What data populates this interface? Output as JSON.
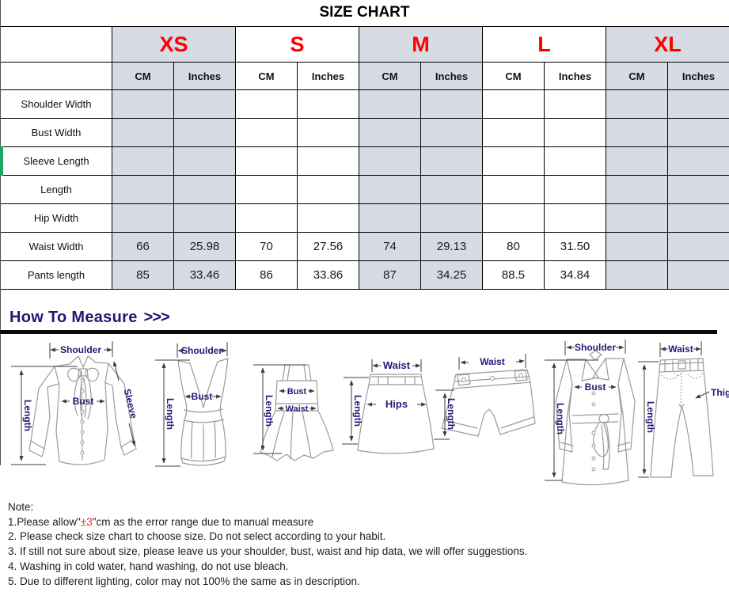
{
  "title": "SIZE CHART",
  "table": {
    "sizes": [
      {
        "label": "XS",
        "shaded": true
      },
      {
        "label": "S",
        "shaded": false
      },
      {
        "label": "M",
        "shaded": true
      },
      {
        "label": "L",
        "shaded": false
      },
      {
        "label": "XL",
        "shaded": true
      }
    ],
    "unit_headers": [
      "CM",
      "Inches"
    ],
    "rows": [
      {
        "label": "Shoulder Width",
        "values": [
          "",
          "",
          "",
          "",
          "",
          "",
          "",
          "",
          "",
          ""
        ]
      },
      {
        "label": "Bust Width",
        "values": [
          "",
          "",
          "",
          "",
          "",
          "",
          "",
          "",
          "",
          ""
        ]
      },
      {
        "label": "Sleeve Length",
        "values": [
          "",
          "",
          "",
          "",
          "",
          "",
          "",
          "",
          "",
          ""
        ],
        "selected": true
      },
      {
        "label": "Length",
        "values": [
          "",
          "",
          "",
          "",
          "",
          "",
          "",
          "",
          "",
          ""
        ]
      },
      {
        "label": "Hip Width",
        "values": [
          "",
          "",
          "",
          "",
          "",
          "",
          "",
          "",
          "",
          ""
        ]
      },
      {
        "label": "Waist Width",
        "values": [
          "66",
          "25.98",
          "70",
          "27.56",
          "74",
          "29.13",
          "80",
          "31.50",
          "",
          ""
        ]
      },
      {
        "label": "Pants length",
        "values": [
          "85",
          "33.46",
          "86",
          "33.86",
          "87",
          "34.25",
          "88.5",
          "34.84",
          "",
          ""
        ]
      }
    ]
  },
  "how_to_measure": {
    "label": "How To Measure",
    "arrows": ">>>"
  },
  "diagrams": {
    "blouse": {
      "shoulder": "Shoulder",
      "bust": "Bust",
      "length": "Length",
      "sleeve": "Sleeve"
    },
    "tank": {
      "shoulder": "Shoulder",
      "bust": "Bust",
      "length": "Length"
    },
    "dress": {
      "bust": "Bust",
      "waist": "Waist",
      "length": "Length"
    },
    "skirt": {
      "waist": "Waist",
      "hips": "Hips",
      "length": "Length"
    },
    "shorts": {
      "waist": "Waist",
      "length": "Length"
    },
    "coat": {
      "shoulder": "Shoulder",
      "bust": "Bust",
      "length": "Length"
    },
    "jeans": {
      "waist": "Waist",
      "thigh": "Thigh",
      "length": "Length"
    }
  },
  "notes": {
    "heading": "Note:",
    "line1": {
      "prefix": "1.Please allow\"",
      "highlight": "±3",
      "suffix": "\"cm as the error range due to manual measure"
    },
    "items": [
      "2. Please check size chart to choose size. Do not select according to your habit.",
      "3. If still not sure about size, please leave us your shoulder, bust, waist and hip data, we will offer suggestions.",
      "4. Washing in cold water, hand washing, do not use bleach.",
      "5. Due to different lighting, color may not 100% the same as in description."
    ]
  },
  "colors": {
    "size_label": "#ff0000",
    "shaded_column": "#d6dbe4",
    "heading_navy": "#1f1a70",
    "note_highlight": "#ff2a2a",
    "selection_green": "#21a366"
  }
}
